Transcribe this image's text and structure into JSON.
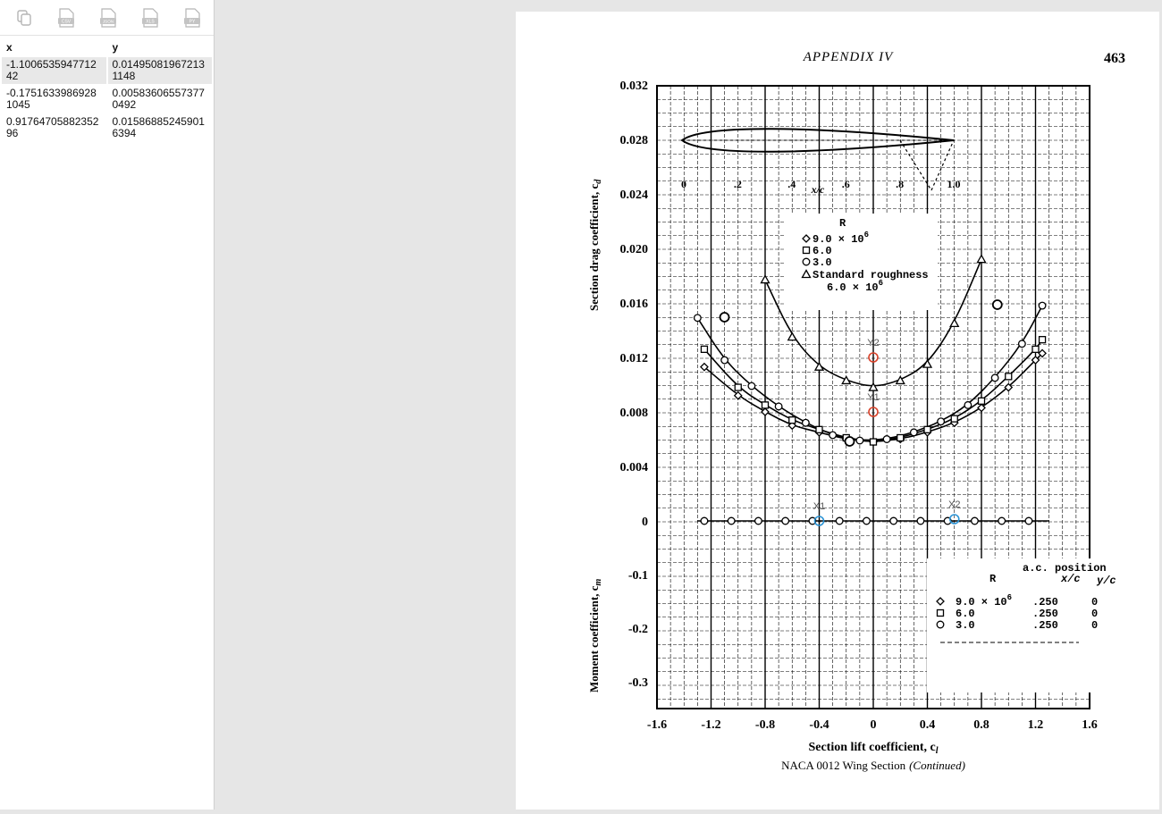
{
  "toolbar": {
    "items": [
      {
        "name": "copy-icon",
        "label": ""
      },
      {
        "name": "csv-export-icon",
        "label": "CSV"
      },
      {
        "name": "json-export-icon",
        "label": "JSON"
      },
      {
        "name": "xls-export-icon",
        "label": "XLS"
      },
      {
        "name": "py-export-icon",
        "label": "PY"
      }
    ]
  },
  "table": {
    "headers": [
      "x",
      "y"
    ],
    "rows": [
      [
        "-1.100653594771242",
        "0.014950819672131148"
      ],
      [
        "-0.17516339869281045",
        "0.005836065573770492"
      ],
      [
        "0.9176470588235296",
        "0.015868852459016394"
      ]
    ]
  },
  "figure": {
    "page_header": "APPENDIX IV",
    "page_number": "463",
    "x_axis_label": "Section lift coefficient, c",
    "x_axis_sub": "l",
    "y_axis_label_top": "Section drag coefficient, c",
    "y_axis_sub_top": "d",
    "y_axis_label_bottom": "Moment coefficient, c",
    "y_axis_sub_bottom": "m",
    "caption": "NACA 0012 Wing Section",
    "caption_cont": "(Continued)",
    "airfoil_axis_label": "x/c",
    "airfoil_ticks": [
      "0",
      ".2",
      ".4",
      ".6",
      ".8",
      "1.0"
    ],
    "legend_top": {
      "title": "R",
      "entries": [
        "9.0 × 10",
        "6.0",
        "3.0",
        "Standard roughness",
        "6.0 × 10"
      ],
      "exponent": "6"
    },
    "legend_bottom": {
      "header1": "a.c. position",
      "col_r": "R",
      "col_x": "x/c",
      "col_y": "y/c",
      "rows": [
        {
          "r": "9.0 × 10",
          "x": ".250",
          "y": "0"
        },
        {
          "r": "6.0",
          "x": ".250",
          "y": "0"
        },
        {
          "r": "3.0",
          "x": ".250",
          "y": "0"
        }
      ],
      "exponent": "6"
    },
    "calibration": {
      "x1": "X1",
      "x2": "X2",
      "y1": "Y1",
      "y2": "Y2"
    }
  },
  "chart_data": {
    "type": "scatter",
    "title": "",
    "xlabel": "Section lift coefficient, c_l",
    "ylabel": "Section drag coefficient, c_d / Moment coefficient, c_m a.c.",
    "xlim": [
      -1.6,
      1.6
    ],
    "ylim": [
      -0.35,
      0.032
    ],
    "x_ticks": [
      "-1.6",
      "-1.2",
      "-0.8",
      "-0.4",
      "0",
      "0.4",
      "0.8",
      "1.2",
      "1.6"
    ],
    "y_ticks_drag": [
      "0.032",
      "0.028",
      "0.024",
      "0.020",
      "0.016",
      "0.012",
      "0.008",
      "0.004",
      "0"
    ],
    "y_ticks_moment": [
      "-0.1",
      "-0.2",
      "-0.3"
    ],
    "grid": true,
    "digitized_points": [
      {
        "x": -1.100653594771242,
        "y": 0.014950819672131148
      },
      {
        "x": -0.17516339869281045,
        "y": 0.005836065573770492
      },
      {
        "x": 0.9176470588235296,
        "y": 0.015868852459016394
      }
    ],
    "calibration_points": {
      "X1": -0.4,
      "X2": 0.6,
      "Y1": 0.008,
      "Y2": 0.012
    },
    "series": [
      {
        "name": "9.0 × 10^6",
        "x": [
          -1.25,
          -1.0,
          -0.8,
          -0.6,
          -0.4,
          -0.2,
          0,
          0.2,
          0.4,
          0.6,
          0.8,
          1.0,
          1.2,
          1.25
        ],
        "y": [
          0.0113,
          0.0092,
          0.008,
          0.007,
          0.0065,
          0.006,
          0.0058,
          0.006,
          0.0065,
          0.0072,
          0.0083,
          0.0098,
          0.0118,
          0.0123
        ]
      },
      {
        "name": "6.0",
        "x": [
          -1.25,
          -1.0,
          -0.8,
          -0.6,
          -0.4,
          -0.2,
          0,
          0.2,
          0.4,
          0.6,
          0.8,
          1.0,
          1.2,
          1.25
        ],
        "y": [
          0.0126,
          0.0098,
          0.0085,
          0.0074,
          0.0067,
          0.0061,
          0.0058,
          0.0061,
          0.0067,
          0.0075,
          0.0088,
          0.0106,
          0.0126,
          0.0133
        ]
      },
      {
        "name": "3.0",
        "x": [
          -1.3,
          -1.1,
          -0.9,
          -0.7,
          -0.5,
          -0.3,
          -0.1,
          0.1,
          0.3,
          0.5,
          0.7,
          0.9,
          1.1,
          1.25
        ],
        "y": [
          0.0149,
          0.0118,
          0.0099,
          0.0084,
          0.0072,
          0.0063,
          0.0059,
          0.006,
          0.0065,
          0.0073,
          0.0085,
          0.0105,
          0.013,
          0.0158
        ]
      },
      {
        "name": "Standard roughness 6.0 × 10^6",
        "x": [
          -0.8,
          -0.6,
          -0.4,
          -0.2,
          0,
          0.2,
          0.4,
          0.6,
          0.8
        ],
        "y": [
          0.0177,
          0.0135,
          0.0113,
          0.0103,
          0.0098,
          0.0103,
          0.0115,
          0.0145,
          0.0192
        ]
      }
    ]
  }
}
